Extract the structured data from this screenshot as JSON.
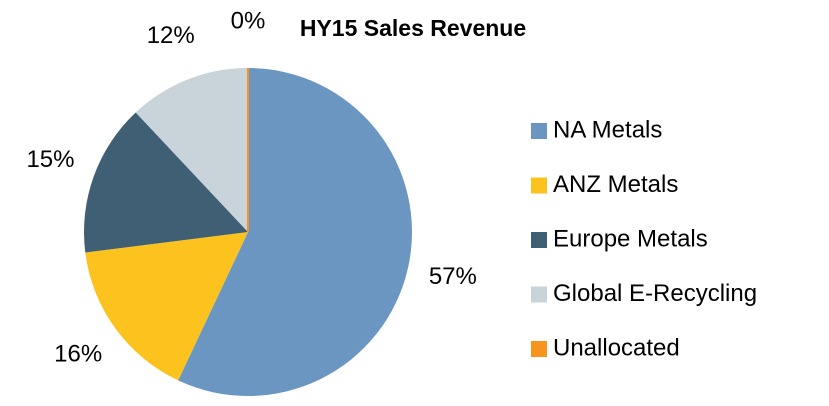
{
  "chart_data": {
    "type": "pie",
    "title": "HY15 Sales Revenue",
    "categories": [
      "NA Metals",
      "ANZ Metals",
      "Europe Metals",
      "Global E-Recycling",
      "Unallocated"
    ],
    "values": [
      57,
      16,
      15,
      12,
      0
    ],
    "value_labels": [
      "57%",
      "16%",
      "15%",
      "12%",
      "0%"
    ],
    "colors": [
      "#6a96c1",
      "#fcc31e",
      "#3f5f75",
      "#c8d4d9",
      "#f7941d"
    ],
    "legend": "right"
  }
}
